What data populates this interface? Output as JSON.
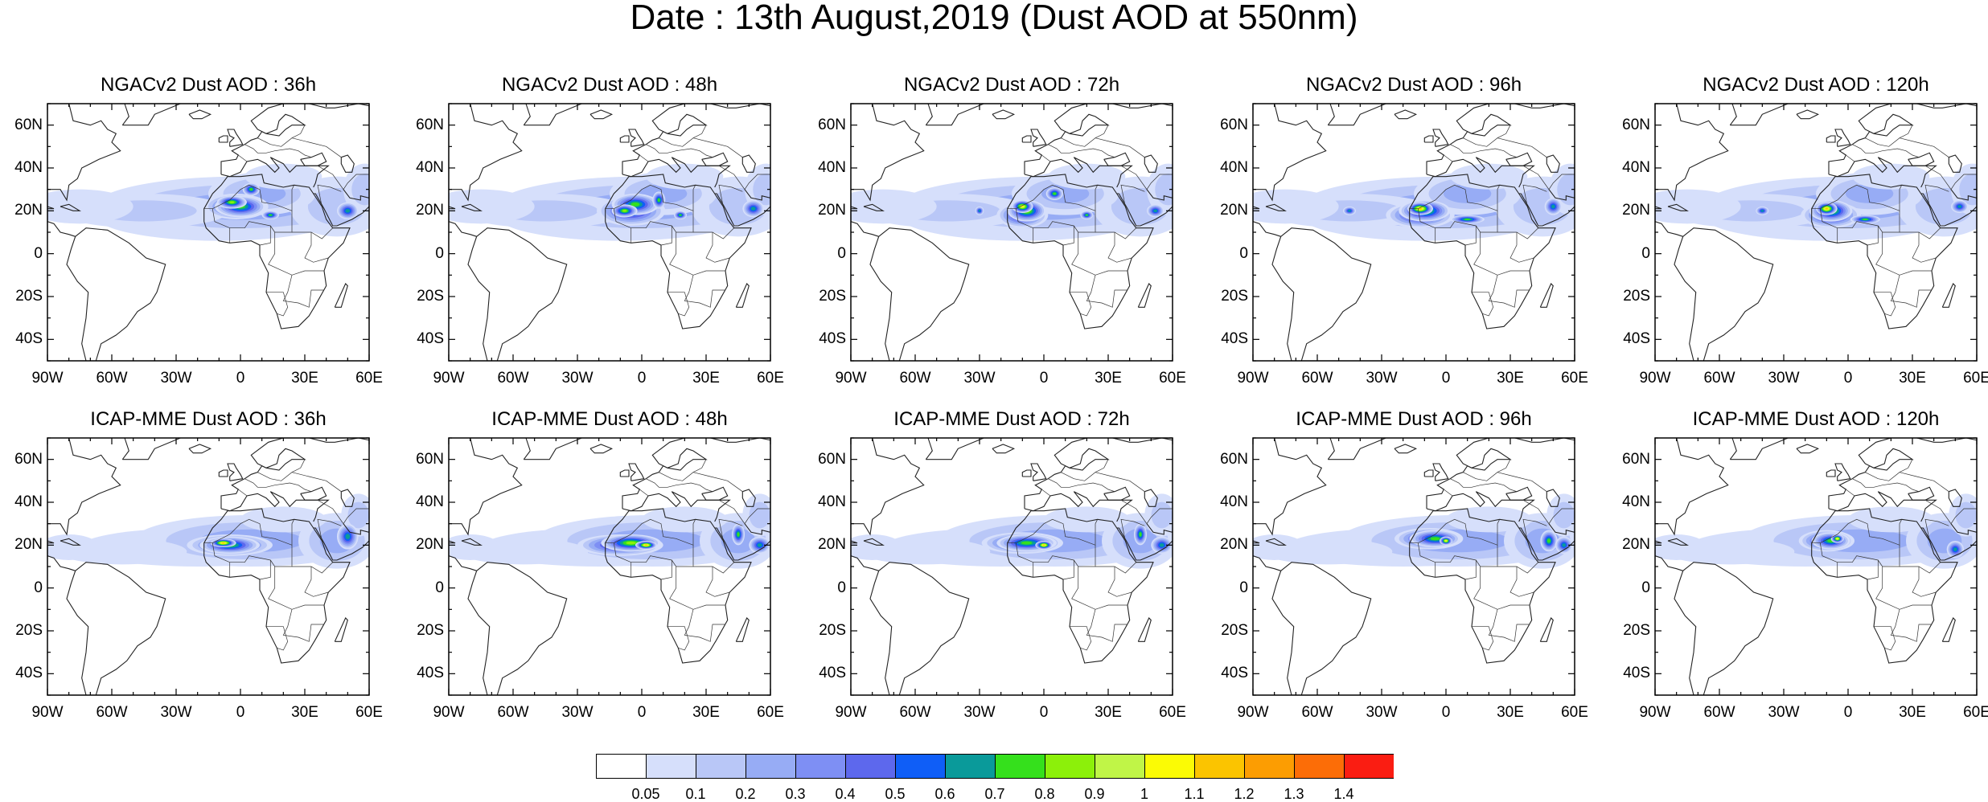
{
  "title": "Date : 13th August,2019 (Dust AOD at 550nm)",
  "rows": [
    {
      "model": "NGACv2",
      "panels": [
        {
          "title": "NGACv2 Dust AOD : 36h",
          "forecast_hour": 36
        },
        {
          "title": "NGACv2 Dust AOD : 48h",
          "forecast_hour": 48
        },
        {
          "title": "NGACv2 Dust AOD : 72h",
          "forecast_hour": 72
        },
        {
          "title": "NGACv2 Dust AOD : 96h",
          "forecast_hour": 96
        },
        {
          "title": "NGACv2 Dust AOD : 120h",
          "forecast_hour": 120
        }
      ]
    },
    {
      "model": "ICAP-MME",
      "panels": [
        {
          "title": "ICAP-MME Dust AOD : 36h",
          "forecast_hour": 36
        },
        {
          "title": "ICAP-MME Dust AOD : 48h",
          "forecast_hour": 48
        },
        {
          "title": "ICAP-MME Dust AOD : 72h",
          "forecast_hour": 72
        },
        {
          "title": "ICAP-MME Dust AOD : 96h",
          "forecast_hour": 96
        },
        {
          "title": "ICAP-MME Dust AOD : 120h",
          "forecast_hour": 120
        }
      ]
    }
  ],
  "axes": {
    "lon_range": [
      -90,
      60
    ],
    "lat_range": [
      -50,
      70
    ],
    "lon_ticks": [
      -90,
      -60,
      -30,
      0,
      30,
      60
    ],
    "lat_ticks": [
      60,
      40,
      20,
      0,
      -20,
      -40
    ],
    "lon_tick_labels": [
      "90W",
      "60W",
      "30W",
      "0",
      "30E",
      "60E"
    ],
    "lat_tick_labels": [
      "60N",
      "40N",
      "20N",
      "0",
      "20S",
      "40S"
    ]
  },
  "colorbar": {
    "labels": [
      "0.05",
      "0.1",
      "0.2",
      "0.3",
      "0.4",
      "0.5",
      "0.6",
      "0.7",
      "0.8",
      "0.9",
      "1",
      "1.1",
      "1.2",
      "1.3",
      "1.4"
    ],
    "colors": [
      "#ffffff",
      "#d6dffb",
      "#b9c7f7",
      "#97acf5",
      "#7e8ff4",
      "#5d68ed",
      "#0f5ef7",
      "#0a9a9a",
      "#35e01c",
      "#8cf00a",
      "#c0f547",
      "#fbfb05",
      "#fbc400",
      "#fc9d02",
      "#fc6d07",
      "#fa1d12"
    ]
  }
}
